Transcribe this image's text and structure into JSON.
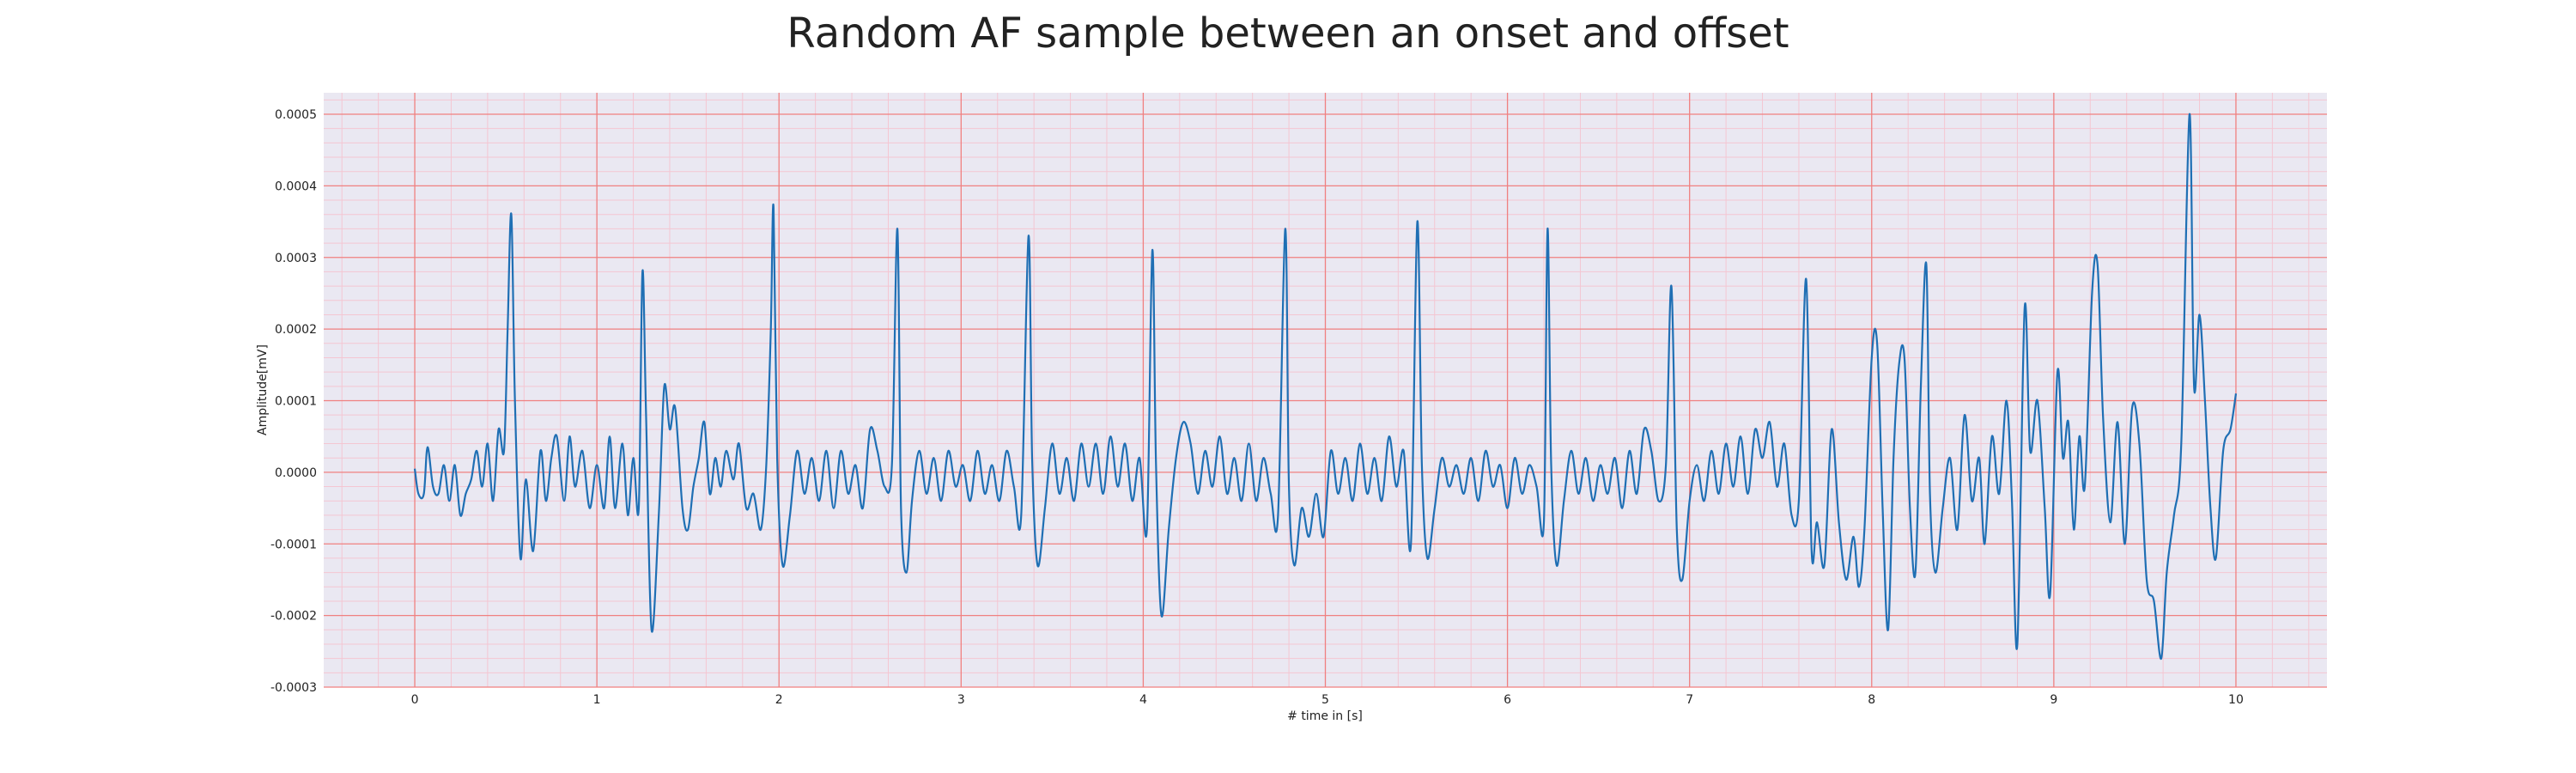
{
  "chart_data": {
    "type": "line",
    "title": "Random AF sample between an onset and offset",
    "xlabel": "# time in [s]",
    "ylabel": "Amplitude[mV]",
    "xlim": [
      -0.5,
      10.5
    ],
    "ylim": [
      -0.0003,
      0.00053
    ],
    "xticks": [
      "0",
      "1",
      "2",
      "3",
      "4",
      "5",
      "6",
      "7",
      "8",
      "9",
      "10"
    ],
    "yticks": [
      "-0.0003",
      "-0.0002",
      "-0.0001",
      "0.0000",
      "0.0001",
      "0.0002",
      "0.0003",
      "0.0004",
      "0.0005"
    ],
    "grid": true,
    "colors": {
      "background": "#eae8f2",
      "major_grid": "#f08080",
      "minor_grid": "#f4c6d2",
      "line": "#1f6fb4"
    },
    "series": [
      {
        "points": [
          [
            0.0,
            5e-06
          ],
          [
            0.02,
            -3e-05
          ],
          [
            0.05,
            -3e-05
          ],
          [
            0.07,
            3.5e-05
          ],
          [
            0.1,
            -2e-05
          ],
          [
            0.13,
            -3e-05
          ],
          [
            0.16,
            1e-05
          ],
          [
            0.19,
            -4e-05
          ],
          [
            0.22,
            1e-05
          ],
          [
            0.25,
            -6e-05
          ],
          [
            0.28,
            -3e-05
          ],
          [
            0.31,
            -1e-05
          ],
          [
            0.34,
            3e-05
          ],
          [
            0.37,
            -2e-05
          ],
          [
            0.4,
            4e-05
          ],
          [
            0.43,
            -4e-05
          ],
          [
            0.46,
            6e-05
          ],
          [
            0.49,
            3e-05
          ],
          [
            0.51,
            0.0002
          ],
          [
            0.53,
            0.00036
          ],
          [
            0.55,
            0.0001
          ],
          [
            0.58,
            -0.00012
          ],
          [
            0.61,
            -1e-05
          ],
          [
            0.65,
            -0.00011
          ],
          [
            0.69,
            3e-05
          ],
          [
            0.72,
            -4e-05
          ],
          [
            0.75,
            2e-05
          ],
          [
            0.78,
            5e-05
          ],
          [
            0.82,
            -4e-05
          ],
          [
            0.85,
            5e-05
          ],
          [
            0.88,
            -2e-05
          ],
          [
            0.92,
            3e-05
          ],
          [
            0.96,
            -5e-05
          ],
          [
            1.0,
            1e-05
          ],
          [
            1.04,
            -5e-05
          ],
          [
            1.07,
            5e-05
          ],
          [
            1.1,
            -5e-05
          ],
          [
            1.14,
            4e-05
          ],
          [
            1.17,
            -6e-05
          ],
          [
            1.2,
            2e-05
          ],
          [
            1.23,
            -5e-05
          ],
          [
            1.25,
            0.00028
          ],
          [
            1.27,
            8e-05
          ],
          [
            1.3,
            -0.00022
          ],
          [
            1.34,
            -6e-05
          ],
          [
            1.37,
            0.00012
          ],
          [
            1.4,
            6e-05
          ],
          [
            1.43,
            9e-05
          ],
          [
            1.47,
            -5e-05
          ],
          [
            1.5,
            -8e-05
          ],
          [
            1.53,
            -2e-05
          ],
          [
            1.56,
            2e-05
          ],
          [
            1.59,
            7e-05
          ],
          [
            1.62,
            -3e-05
          ],
          [
            1.65,
            2e-05
          ],
          [
            1.68,
            -2e-05
          ],
          [
            1.71,
            3e-05
          ],
          [
            1.75,
            -1e-05
          ],
          [
            1.78,
            4e-05
          ],
          [
            1.82,
            -5e-05
          ],
          [
            1.86,
            -3e-05
          ],
          [
            1.9,
            -8e-05
          ],
          [
            1.93,
            1e-05
          ],
          [
            1.955,
            0.0002
          ],
          [
            1.97,
            0.00037
          ],
          [
            1.99,
            2e-05
          ],
          [
            2.02,
            -0.00013
          ],
          [
            2.06,
            -6e-05
          ],
          [
            2.1,
            3e-05
          ],
          [
            2.14,
            -3e-05
          ],
          [
            2.18,
            2e-05
          ],
          [
            2.22,
            -4e-05
          ],
          [
            2.26,
            3e-05
          ],
          [
            2.3,
            -5e-05
          ],
          [
            2.34,
            3e-05
          ],
          [
            2.38,
            -3e-05
          ],
          [
            2.42,
            1e-05
          ],
          [
            2.46,
            -5e-05
          ],
          [
            2.5,
            6e-05
          ],
          [
            2.54,
            3e-05
          ],
          [
            2.58,
            -2e-05
          ],
          [
            2.62,
            1e-05
          ],
          [
            2.65,
            0.00034
          ],
          [
            2.67,
            -5e-05
          ],
          [
            2.7,
            -0.00014
          ],
          [
            2.73,
            -4e-05
          ],
          [
            2.77,
            3e-05
          ],
          [
            2.81,
            -3e-05
          ],
          [
            2.85,
            2e-05
          ],
          [
            2.89,
            -4e-05
          ],
          [
            2.93,
            3e-05
          ],
          [
            2.97,
            -2e-05
          ],
          [
            3.01,
            1e-05
          ],
          [
            3.05,
            -4e-05
          ],
          [
            3.09,
            3e-05
          ],
          [
            3.13,
            -3e-05
          ],
          [
            3.17,
            1e-05
          ],
          [
            3.21,
            -4e-05
          ],
          [
            3.25,
            3e-05
          ],
          [
            3.29,
            -2e-05
          ],
          [
            3.33,
            -6e-05
          ],
          [
            3.37,
            0.00033
          ],
          [
            3.39,
            2e-05
          ],
          [
            3.42,
            -0.00013
          ],
          [
            3.46,
            -5e-05
          ],
          [
            3.5,
            4e-05
          ],
          [
            3.54,
            -3e-05
          ],
          [
            3.58,
            2e-05
          ],
          [
            3.62,
            -4e-05
          ],
          [
            3.66,
            4e-05
          ],
          [
            3.7,
            -2e-05
          ],
          [
            3.74,
            4e-05
          ],
          [
            3.78,
            -3e-05
          ],
          [
            3.82,
            5e-05
          ],
          [
            3.86,
            -2e-05
          ],
          [
            3.9,
            4e-05
          ],
          [
            3.94,
            -4e-05
          ],
          [
            3.98,
            2e-05
          ],
          [
            4.02,
            -8e-05
          ],
          [
            4.05,
            0.00031
          ],
          [
            4.07,
            1e-05
          ],
          [
            4.1,
            -0.0002
          ],
          [
            4.14,
            -8e-05
          ],
          [
            4.18,
            2e-05
          ],
          [
            4.22,
            7e-05
          ],
          [
            4.26,
            4e-05
          ],
          [
            4.3,
            -3e-05
          ],
          [
            4.34,
            3e-05
          ],
          [
            4.38,
            -2e-05
          ],
          [
            4.42,
            5e-05
          ],
          [
            4.46,
            -3e-05
          ],
          [
            4.5,
            2e-05
          ],
          [
            4.54,
            -4e-05
          ],
          [
            4.58,
            4e-05
          ],
          [
            4.62,
            -4e-05
          ],
          [
            4.66,
            2e-05
          ],
          [
            4.7,
            -3e-05
          ],
          [
            4.74,
            -6e-05
          ],
          [
            4.78,
            0.00034
          ],
          [
            4.8,
            -2e-05
          ],
          [
            4.83,
            -0.00013
          ],
          [
            4.87,
            -5e-05
          ],
          [
            4.91,
            -9e-05
          ],
          [
            4.95,
            -3e-05
          ],
          [
            4.99,
            -9e-05
          ],
          [
            5.03,
            3e-05
          ],
          [
            5.07,
            -3e-05
          ],
          [
            5.11,
            2e-05
          ],
          [
            5.15,
            -4e-05
          ],
          [
            5.19,
            4e-05
          ],
          [
            5.23,
            -3e-05
          ],
          [
            5.27,
            2e-05
          ],
          [
            5.31,
            -4e-05
          ],
          [
            5.35,
            5e-05
          ],
          [
            5.39,
            -2e-05
          ],
          [
            5.43,
            3e-05
          ],
          [
            5.47,
            -0.0001
          ],
          [
            5.505,
            0.00035
          ],
          [
            5.53,
            1e-05
          ],
          [
            5.56,
            -0.00012
          ],
          [
            5.6,
            -5e-05
          ],
          [
            5.64,
            2e-05
          ],
          [
            5.68,
            -2e-05
          ],
          [
            5.72,
            1e-05
          ],
          [
            5.76,
            -3e-05
          ],
          [
            5.8,
            2e-05
          ],
          [
            5.84,
            -4e-05
          ],
          [
            5.88,
            3e-05
          ],
          [
            5.92,
            -2e-05
          ],
          [
            5.96,
            1e-05
          ],
          [
            6.0,
            -5e-05
          ],
          [
            6.04,
            2e-05
          ],
          [
            6.08,
            -3e-05
          ],
          [
            6.12,
            1e-05
          ],
          [
            6.16,
            -2e-05
          ],
          [
            6.2,
            -7e-05
          ],
          [
            6.22,
            0.00034
          ],
          [
            6.24,
            1e-05
          ],
          [
            6.27,
            -0.00013
          ],
          [
            6.31,
            -4e-05
          ],
          [
            6.35,
            3e-05
          ],
          [
            6.39,
            -3e-05
          ],
          [
            6.43,
            2e-05
          ],
          [
            6.47,
            -4e-05
          ],
          [
            6.51,
            1e-05
          ],
          [
            6.55,
            -3e-05
          ],
          [
            6.59,
            2e-05
          ],
          [
            6.63,
            -5e-05
          ],
          [
            6.67,
            3e-05
          ],
          [
            6.71,
            -3e-05
          ],
          [
            6.75,
            6e-05
          ],
          [
            6.79,
            3e-05
          ],
          [
            6.83,
            -4e-05
          ],
          [
            6.87,
            1e-05
          ],
          [
            6.9,
            0.00026
          ],
          [
            6.93,
            -8e-05
          ],
          [
            6.96,
            -0.00015
          ],
          [
            7.0,
            -4e-05
          ],
          [
            7.04,
            1e-05
          ],
          [
            7.08,
            -4e-05
          ],
          [
            7.12,
            3e-05
          ],
          [
            7.16,
            -3e-05
          ],
          [
            7.2,
            4e-05
          ],
          [
            7.24,
            -2e-05
          ],
          [
            7.28,
            5e-05
          ],
          [
            7.32,
            -3e-05
          ],
          [
            7.36,
            6e-05
          ],
          [
            7.4,
            2e-05
          ],
          [
            7.44,
            7e-05
          ],
          [
            7.48,
            -2e-05
          ],
          [
            7.52,
            4e-05
          ],
          [
            7.56,
            -6e-05
          ],
          [
            7.6,
            -4e-05
          ],
          [
            7.64,
            0.00027
          ],
          [
            7.67,
            -0.00011
          ],
          [
            7.7,
            -7e-05
          ],
          [
            7.74,
            -0.00013
          ],
          [
            7.78,
            6e-05
          ],
          [
            7.82,
            -7e-05
          ],
          [
            7.86,
            -0.00015
          ],
          [
            7.9,
            -9e-05
          ],
          [
            7.93,
            -0.00016
          ],
          [
            7.96,
            -8e-05
          ],
          [
            8.0,
            0.00016
          ],
          [
            8.03,
            0.00018
          ],
          [
            8.06,
            -5e-05
          ],
          [
            8.09,
            -0.00022
          ],
          [
            8.12,
            2e-05
          ],
          [
            8.15,
            0.00015
          ],
          [
            8.18,
            0.00016
          ],
          [
            8.21,
            -5e-05
          ],
          [
            8.24,
            -0.00014
          ],
          [
            8.27,
            0.00012
          ],
          [
            8.3,
            0.00029
          ],
          [
            8.32,
            -3e-05
          ],
          [
            8.35,
            -0.00014
          ],
          [
            8.39,
            -5e-05
          ],
          [
            8.43,
            2e-05
          ],
          [
            8.47,
            -8e-05
          ],
          [
            8.51,
            8e-05
          ],
          [
            8.55,
            -4e-05
          ],
          [
            8.59,
            2e-05
          ],
          [
            8.62,
            -0.0001
          ],
          [
            8.66,
            5e-05
          ],
          [
            8.7,
            -3e-05
          ],
          [
            8.74,
            0.0001
          ],
          [
            8.77,
            -4e-05
          ],
          [
            8.8,
            -0.00024
          ],
          [
            8.84,
            0.00023
          ],
          [
            8.87,
            3e-05
          ],
          [
            8.91,
            0.0001
          ],
          [
            8.95,
            -5e-05
          ],
          [
            8.98,
            -0.00017
          ],
          [
            9.02,
            0.00014
          ],
          [
            9.05,
            2e-05
          ],
          [
            9.08,
            7e-05
          ],
          [
            9.11,
            -8e-05
          ],
          [
            9.14,
            5e-05
          ],
          [
            9.17,
            -2e-05
          ],
          [
            9.21,
            0.00025
          ],
          [
            9.24,
            0.00029
          ],
          [
            9.27,
            8e-05
          ],
          [
            9.31,
            -7e-05
          ],
          [
            9.35,
            7e-05
          ],
          [
            9.39,
            -0.0001
          ],
          [
            9.43,
            9e-05
          ],
          [
            9.47,
            4e-05
          ],
          [
            9.51,
            -0.00015
          ],
          [
            9.55,
            -0.00018
          ],
          [
            9.59,
            -0.00026
          ],
          [
            9.62,
            -0.00014
          ],
          [
            9.66,
            -6e-05
          ],
          [
            9.7,
            4e-05
          ],
          [
            9.745,
            0.0005
          ],
          [
            9.77,
            0.00012
          ],
          [
            9.8,
            0.00022
          ],
          [
            9.83,
            0.0001
          ],
          [
            9.86,
            -5e-05
          ],
          [
            9.89,
            -0.00012
          ],
          [
            9.93,
            3e-05
          ],
          [
            9.97,
            6e-05
          ],
          [
            10.0,
            0.00011
          ]
        ]
      }
    ]
  }
}
